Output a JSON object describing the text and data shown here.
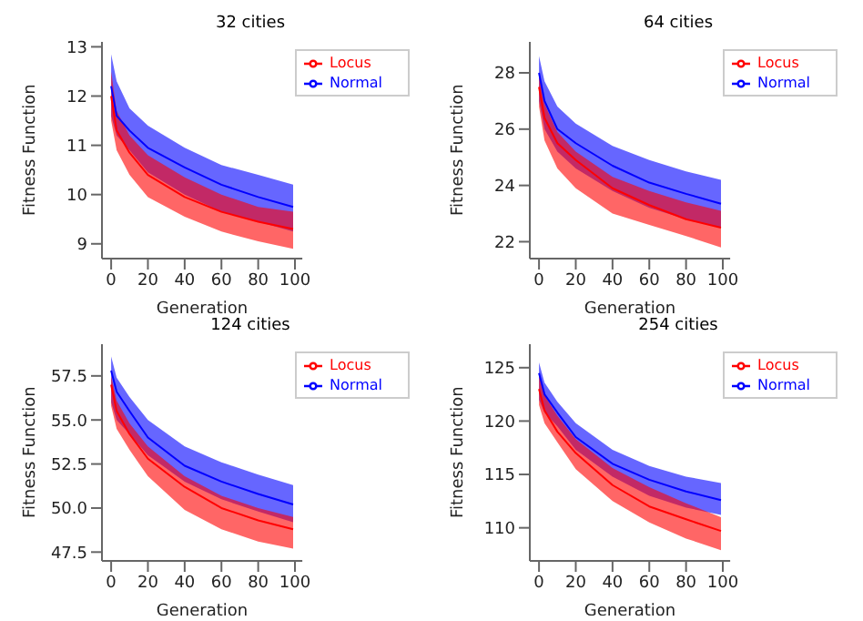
{
  "chart_data": [
    {
      "type": "line",
      "title": "32 cities",
      "xlabel": "Generation",
      "ylabel": "Fitness Function",
      "x": [
        0,
        3,
        10,
        20,
        40,
        60,
        80,
        99
      ],
      "xlim": [
        -5,
        104
      ],
      "xticks": [
        0,
        20,
        40,
        60,
        80,
        100
      ],
      "ylim": [
        8.7,
        13.1
      ],
      "yticks": [
        9,
        10,
        11,
        12,
        13
      ],
      "legend": "top right",
      "grid": false,
      "series": [
        {
          "name": "Normal",
          "color": "#0000ff",
          "values": [
            12.2,
            11.6,
            11.3,
            10.95,
            10.55,
            10.2,
            9.95,
            9.75
          ],
          "lower": [
            11.6,
            11.2,
            10.9,
            10.45,
            10.0,
            9.65,
            9.45,
            9.25
          ],
          "upper": [
            12.85,
            12.3,
            11.75,
            11.4,
            10.95,
            10.6,
            10.4,
            10.2
          ]
        },
        {
          "name": "Locus",
          "color": "#ff0000",
          "values": [
            12.0,
            11.3,
            10.85,
            10.4,
            9.95,
            9.65,
            9.45,
            9.3
          ],
          "lower": [
            11.5,
            10.9,
            10.4,
            9.95,
            9.55,
            9.25,
            9.05,
            8.9
          ],
          "upper": [
            12.5,
            11.7,
            11.2,
            10.8,
            10.35,
            10.0,
            9.75,
            9.65
          ]
        }
      ]
    },
    {
      "type": "line",
      "title": "64 cities",
      "xlabel": "Generation",
      "ylabel": "Fitness Function",
      "x": [
        0,
        3,
        10,
        20,
        40,
        60,
        80,
        99
      ],
      "xlim": [
        -5,
        104
      ],
      "xticks": [
        0,
        20,
        40,
        60,
        80,
        100
      ],
      "ylim": [
        21.4,
        29.1
      ],
      "yticks": [
        22,
        24,
        26,
        28
      ],
      "legend": "top right",
      "grid": false,
      "series": [
        {
          "name": "Normal",
          "color": "#0000ff",
          "values": [
            28.0,
            27.0,
            26.0,
            25.5,
            24.7,
            24.1,
            23.7,
            23.35
          ],
          "lower": [
            27.0,
            26.0,
            25.2,
            24.6,
            23.8,
            23.2,
            22.8,
            22.5
          ],
          "upper": [
            28.6,
            27.7,
            26.8,
            26.2,
            25.4,
            24.9,
            24.5,
            24.2
          ]
        },
        {
          "name": "Locus",
          "color": "#ff0000",
          "values": [
            27.5,
            26.4,
            25.5,
            24.9,
            23.9,
            23.3,
            22.8,
            22.5
          ],
          "lower": [
            26.8,
            25.6,
            24.6,
            23.9,
            23.0,
            22.6,
            22.2,
            21.8
          ],
          "upper": [
            28.0,
            26.9,
            25.9,
            25.2,
            24.3,
            23.8,
            23.4,
            23.1
          ]
        }
      ]
    },
    {
      "type": "line",
      "title": "124 cities",
      "xlabel": "Generation",
      "ylabel": "Fitness Function",
      "x": [
        0,
        3,
        10,
        20,
        40,
        60,
        80,
        99
      ],
      "xlim": [
        -5,
        104
      ],
      "xticks": [
        0,
        20,
        40,
        60,
        80,
        100
      ],
      "ylim": [
        47.0,
        59.3
      ],
      "yticks": [
        47.5,
        {
          "value": 50,
          "label": "50.0"
        },
        52.5,
        {
          "value": 55,
          "label": "55.0"
        },
        57.5
      ],
      "legend": "top right",
      "grid": false,
      "series": [
        {
          "name": "Normal",
          "color": "#0000ff",
          "values": [
            57.8,
            56.6,
            55.5,
            54.0,
            52.4,
            51.5,
            50.8,
            50.2
          ],
          "lower": [
            56.0,
            55.0,
            54.2,
            53.0,
            51.5,
            50.5,
            49.8,
            49.2
          ],
          "upper": [
            58.6,
            57.4,
            56.3,
            55.0,
            53.5,
            52.6,
            51.9,
            51.3
          ]
        },
        {
          "name": "Locus",
          "color": "#ff0000",
          "values": [
            57.0,
            55.5,
            54.2,
            52.8,
            51.2,
            50.0,
            49.3,
            48.8
          ],
          "lower": [
            55.8,
            54.5,
            53.3,
            51.8,
            49.9,
            48.8,
            48.1,
            47.7
          ],
          "upper": [
            57.5,
            56.1,
            54.8,
            53.5,
            51.8,
            50.7,
            50.0,
            49.5
          ]
        }
      ]
    },
    {
      "type": "line",
      "title": "254 cities",
      "xlabel": "Generation",
      "ylabel": "Fitness Function",
      "x": [
        0,
        3,
        10,
        20,
        40,
        60,
        80,
        99
      ],
      "xlim": [
        -5,
        104
      ],
      "xticks": [
        0,
        20,
        40,
        60,
        80,
        100
      ],
      "ylim": [
        106.9,
        127.2
      ],
      "yticks": [
        110,
        115,
        120,
        125
      ],
      "legend": "top right",
      "grid": false,
      "series": [
        {
          "name": "Normal",
          "color": "#0000ff",
          "values": [
            124.5,
            122.5,
            120.8,
            118.5,
            116.0,
            114.5,
            113.4,
            112.6
          ],
          "lower": [
            122.0,
            120.8,
            119.5,
            117.3,
            114.8,
            113.0,
            111.9,
            111.2
          ],
          "upper": [
            125.5,
            123.6,
            121.8,
            119.8,
            117.3,
            115.8,
            114.8,
            114.2
          ]
        },
        {
          "name": "Locus",
          "color": "#ff0000",
          "values": [
            123.0,
            121.0,
            119.0,
            117.0,
            114.0,
            112.0,
            110.8,
            109.7
          ],
          "lower": [
            121.5,
            119.8,
            118.0,
            115.5,
            112.5,
            110.5,
            109.0,
            107.9
          ],
          "upper": [
            124.5,
            122.4,
            120.5,
            118.3,
            115.6,
            113.8,
            112.3,
            111.0
          ]
        }
      ]
    }
  ]
}
